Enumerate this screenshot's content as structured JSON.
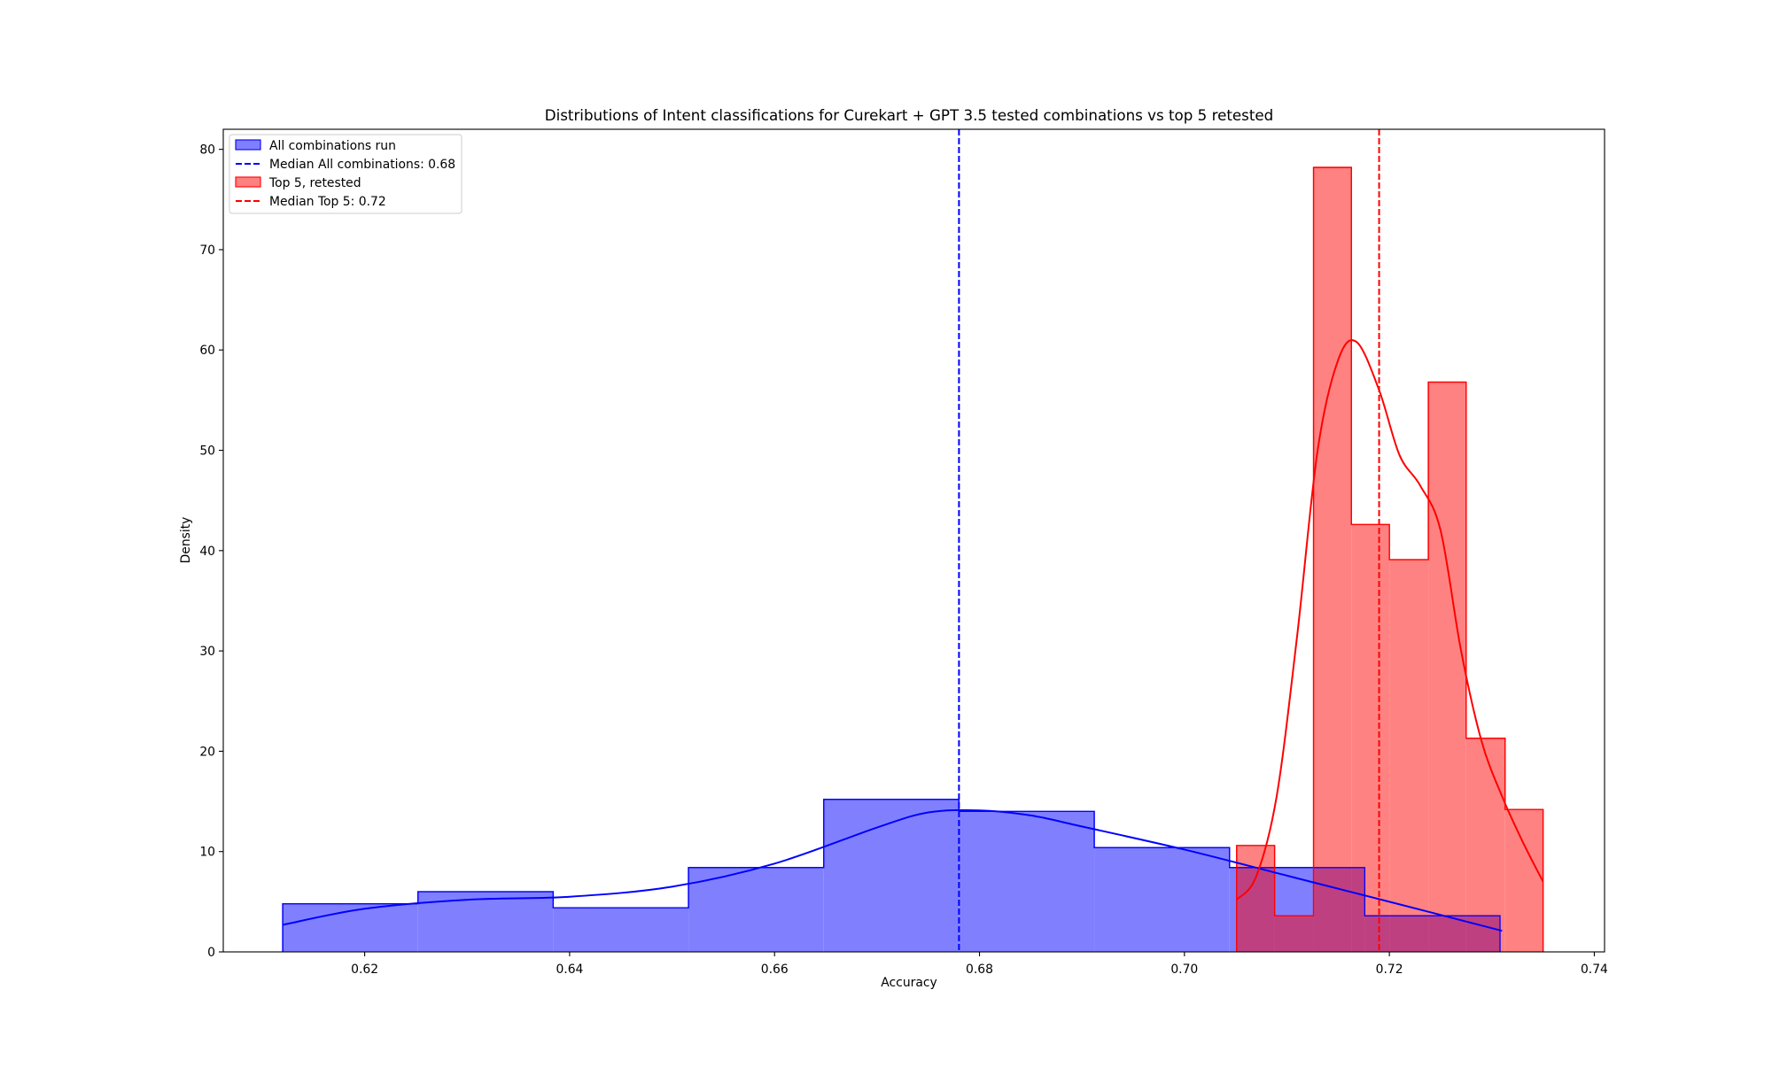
{
  "chart_data": {
    "type": "histogram",
    "title": "Distributions of Intent classifications for Curekart + GPT 3.5 tested combinations vs top 5 retested",
    "xlabel": "Accuracy",
    "ylabel": "Density",
    "xlim": [
      0.6062,
      0.741
    ],
    "ylim": [
      0,
      82
    ],
    "xticks": [
      0.62,
      0.64,
      0.66,
      0.68,
      0.7,
      0.72,
      0.74
    ],
    "xtick_labels": [
      "0.62",
      "0.64",
      "0.66",
      "0.68",
      "0.70",
      "0.72",
      "0.74"
    ],
    "yticks": [
      0,
      10,
      20,
      30,
      40,
      50,
      60,
      70,
      80
    ],
    "ytick_labels": [
      "0",
      "10",
      "20",
      "30",
      "40",
      "50",
      "60",
      "70",
      "80"
    ],
    "grid": false,
    "legend_position": "top-left",
    "series": [
      {
        "name": "All combinations run",
        "color": "#0000ff",
        "bin_edges": [
          0.612,
          0.6252,
          0.6384,
          0.6516,
          0.6648,
          0.678,
          0.6912,
          0.7044,
          0.7176,
          0.7308
        ],
        "values": [
          4.8,
          6.0,
          4.4,
          8.4,
          15.2,
          14.0,
          10.4,
          8.4,
          3.6
        ],
        "kde": {
          "x": [
            0.612,
            0.62,
            0.63,
            0.64,
            0.65,
            0.66,
            0.67,
            0.675,
            0.68,
            0.685,
            0.69,
            0.7,
            0.71,
            0.72,
            0.731
          ],
          "y": [
            2.7,
            4.3,
            5.2,
            5.5,
            6.5,
            8.8,
            12.4,
            13.9,
            14.1,
            13.6,
            12.5,
            10.2,
            7.6,
            5.0,
            2.1
          ]
        }
      },
      {
        "name": "Top 5, retested",
        "color": "#ff0000",
        "bin_edges": [
          0.7051,
          0.7088,
          0.7126,
          0.7163,
          0.72,
          0.7238,
          0.7275,
          0.7313,
          0.735
        ],
        "values": [
          10.6,
          3.6,
          78.2,
          42.6,
          39.1,
          56.8,
          21.3,
          14.2
        ],
        "kde": {
          "x": [
            0.7051,
            0.707,
            0.709,
            0.711,
            0.713,
            0.715,
            0.7168,
            0.719,
            0.721,
            0.723,
            0.725,
            0.727,
            0.729,
            0.731,
            0.733,
            0.735
          ],
          "y": [
            5.2,
            7.5,
            15.5,
            31.5,
            50.0,
            59.0,
            60.8,
            56.0,
            49.5,
            46.5,
            42.0,
            30.0,
            21.0,
            15.5,
            11.0,
            7.0
          ]
        }
      }
    ],
    "median_lines": [
      {
        "name": "Median All combinations: 0.68",
        "x": 0.678,
        "color": "#0000ff",
        "style": "dashed"
      },
      {
        "name": "Median Top 5: 0.72",
        "x": 0.719,
        "color": "#ff0000",
        "style": "dashed"
      }
    ],
    "legend": [
      {
        "label": "All combinations run",
        "kind": "patch",
        "fill": "#8080ff",
        "stroke": "#0000ff"
      },
      {
        "label": "Median All combinations: 0.68",
        "kind": "dashed",
        "stroke": "#0000ff"
      },
      {
        "label": "Top 5, retested",
        "kind": "patch",
        "fill": "#ff8080",
        "stroke": "#ff0000"
      },
      {
        "label": "Median Top 5: 0.72",
        "kind": "dashed",
        "stroke": "#ff0000"
      }
    ]
  }
}
